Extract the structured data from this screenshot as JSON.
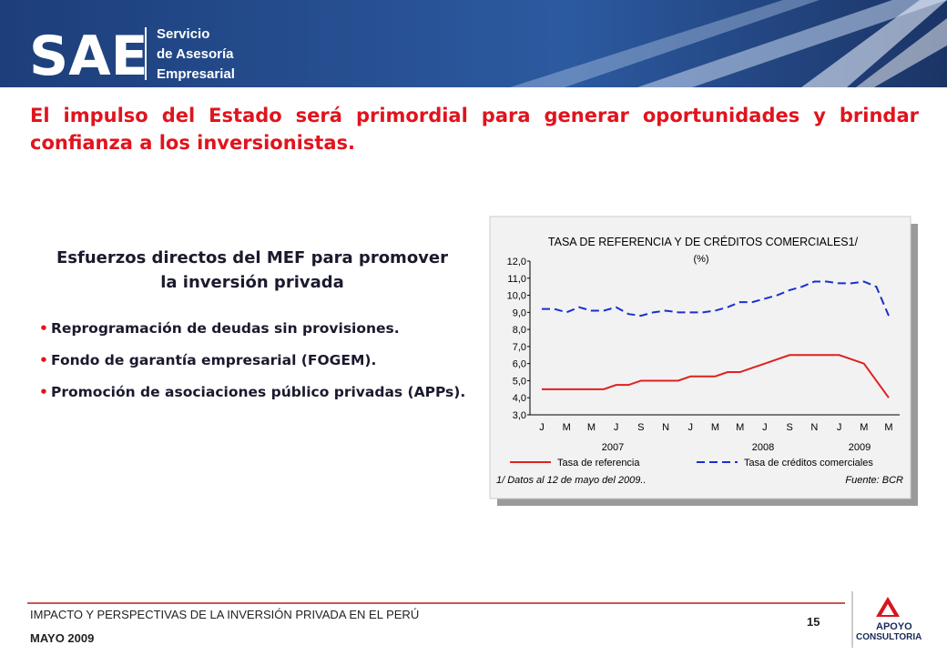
{
  "header": {
    "logo": "SAE",
    "service": [
      "Servicio",
      "de Asesoría",
      "Empresarial"
    ]
  },
  "headline": "El impulso del Estado será primordial para generar oportunidades y brindar confianza a los inversionistas.",
  "section": {
    "title": "Esfuerzos directos del MEF para promover la inversión privada",
    "bullets": [
      "Reprogramación de deudas sin provisiones.",
      "Fondo de garantía empresarial (FOGEM).",
      "Promoción de asociaciones público privadas (APPs)."
    ]
  },
  "chart_data": {
    "type": "line",
    "title": "TASA DE REFERENCIA Y DE CRÉDITOS COMERCIALES1/",
    "subtitle": "(%)",
    "categories": [
      "J",
      null,
      "M",
      null,
      "M",
      null,
      "J",
      null,
      "S",
      null,
      "N",
      null,
      "J",
      null,
      "M",
      null,
      "M",
      null,
      "J",
      null,
      "S",
      null,
      "N",
      null,
      "J",
      null,
      "M",
      null,
      "M"
    ],
    "years": [
      "2007",
      "2008",
      "2009"
    ],
    "series": [
      {
        "name": "Tasa de referencia",
        "color": "#e02020",
        "dash": false,
        "values": [
          4.5,
          4.5,
          4.5,
          4.5,
          4.5,
          4.5,
          4.75,
          4.75,
          5.0,
          5.0,
          5.0,
          5.0,
          5.25,
          5.25,
          5.25,
          5.5,
          5.5,
          5.75,
          6.0,
          6.25,
          6.5,
          6.5,
          6.5,
          6.5,
          6.5,
          6.25,
          6.0,
          5.0,
          4.0
        ]
      },
      {
        "name": "Tasa de créditos comerciales",
        "color": "#1a2fd0",
        "dash": true,
        "values": [
          9.2,
          9.2,
          9.0,
          9.3,
          9.1,
          9.1,
          9.3,
          8.9,
          8.8,
          9.0,
          9.1,
          9.0,
          9.0,
          9.0,
          9.1,
          9.3,
          9.6,
          9.6,
          9.8,
          10.0,
          10.3,
          10.5,
          10.8,
          10.8,
          10.7,
          10.7,
          10.8,
          10.5,
          8.8
        ]
      }
    ],
    "ylim": [
      3,
      12
    ],
    "yticks": [
      {
        "value": 3,
        "label": "3,0"
      },
      {
        "value": 4,
        "label": "4,0"
      },
      {
        "value": 5,
        "label": "5,0"
      },
      {
        "value": 6,
        "label": "6,0"
      },
      {
        "value": 7,
        "label": "7,0"
      },
      {
        "value": 8,
        "label": "8,0"
      },
      {
        "value": 9,
        "label": "9,0"
      },
      {
        "value": 10,
        "label": "10,0"
      },
      {
        "value": 11,
        "label": "11,0"
      },
      {
        "value": 12,
        "label": "12,0"
      }
    ],
    "note": "1/ Datos al 12 de mayo del 2009..",
    "source": "Fuente: BCR"
  },
  "footer": {
    "title": "IMPACTO Y PERSPECTIVAS DE LA INVERSIÓN PRIVADA EN EL PERÚ",
    "date": "MAYO 2009",
    "page": "15",
    "brand": [
      "APOYO",
      "CONSULTORIA"
    ]
  }
}
